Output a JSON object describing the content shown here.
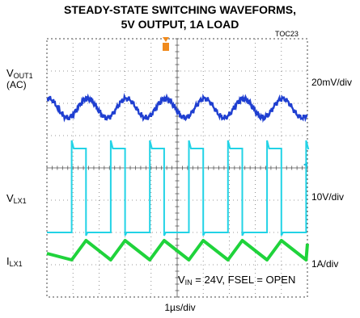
{
  "title_line1": "STEADY-STATE SWITCHING WAVEFORMS,",
  "title_line2": "5V OUTPUT, 1A LOAD",
  "figure_code": "TOC23",
  "channels": [
    {
      "label_main": "V",
      "label_sub": "OUT1",
      "label_extra": "(AC)",
      "scale": "20mV/div",
      "color": "#1f3fd1"
    },
    {
      "label_main": "V",
      "label_sub": "LX1",
      "label_extra": "",
      "scale": "10V/div",
      "color": "#22d3e6"
    },
    {
      "label_main": "I",
      "label_sub": "LX1",
      "label_extra": "",
      "scale": "1A/div",
      "color": "#1fd33b"
    }
  ],
  "note": {
    "pre": "V",
    "sub": "IN",
    "post": " = 24V, FSEL = OPEN"
  },
  "timebase": "1µs/div",
  "chart_data": {
    "type": "line",
    "title": "STEADY-STATE SWITCHING WAVEFORMS, 5V OUTPUT, 1A LOAD",
    "xlabel": "1µs/div",
    "grid": true,
    "x_divisions": 10,
    "y_divisions": 8,
    "switching_edges_rise_div": [
      0.95,
      2.45,
      3.95,
      5.45,
      6.95,
      8.45,
      9.95
    ],
    "switching_edges_fall_div": [
      1.5,
      3.0,
      4.5,
      6.0,
      7.5,
      9.0
    ],
    "series": [
      {
        "name": "VOUT1 (AC)",
        "scale": "20mV/div",
        "period_div": 1.5,
        "amplitude_div": 0.3,
        "baseline_div": 5.85
      },
      {
        "name": "VLX1",
        "scale": "10V/div",
        "high_div": 4.6,
        "low_div": 2.0
      },
      {
        "name": "ILX1",
        "scale": "1A/div",
        "valley_div": 1.15,
        "peak_div": 1.75
      }
    ]
  }
}
